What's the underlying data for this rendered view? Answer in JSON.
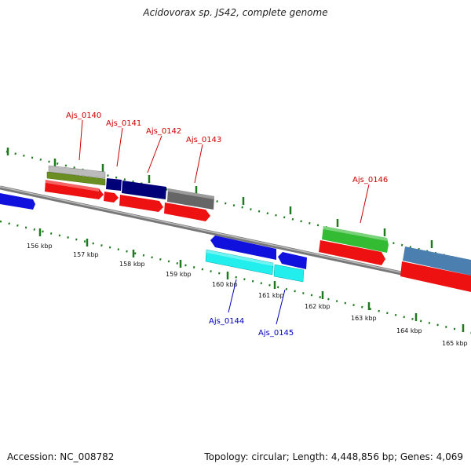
{
  "header": {
    "title": "Acidovorax sp. JS42, complete genome"
  },
  "footer": {
    "accession": "Accession: NC_008782",
    "summary": "Topology: circular; Length: 4,448,856 bp; Genes: 4,069"
  },
  "colors": {
    "backbone": "#8a8a8a",
    "tick": "#1f7a1f",
    "gene_label": "#cc0000",
    "gene_label_minus": "#0000bb",
    "red": "#ee1111",
    "blue": "#1111dd",
    "navy": "#000077",
    "gray": "#666666",
    "silver": "#bbbbbb",
    "olive": "#6b8e23",
    "green": "#33bb33",
    "cyan": "#22eeee",
    "steel": "#4a7fb0"
  },
  "scale": {
    "labels": [
      "156 kbp",
      "157 kbp",
      "158 kbp",
      "159 kbp",
      "160 kbp",
      "161 kbp",
      "162 kbp",
      "163 kbp",
      "164 kbp",
      "165 kbp"
    ]
  },
  "gene_labels": [
    {
      "text": "Ajs_0140",
      "strand": "plus"
    },
    {
      "text": "Ajs_0141",
      "strand": "plus"
    },
    {
      "text": "Ajs_0142",
      "strand": "plus"
    },
    {
      "text": "Ajs_0143",
      "strand": "plus"
    },
    {
      "text": "Ajs_0146",
      "strand": "plus"
    },
    {
      "text": "Ajs_0144",
      "strand": "minus"
    },
    {
      "text": "Ajs_0145",
      "strand": "minus"
    }
  ]
}
